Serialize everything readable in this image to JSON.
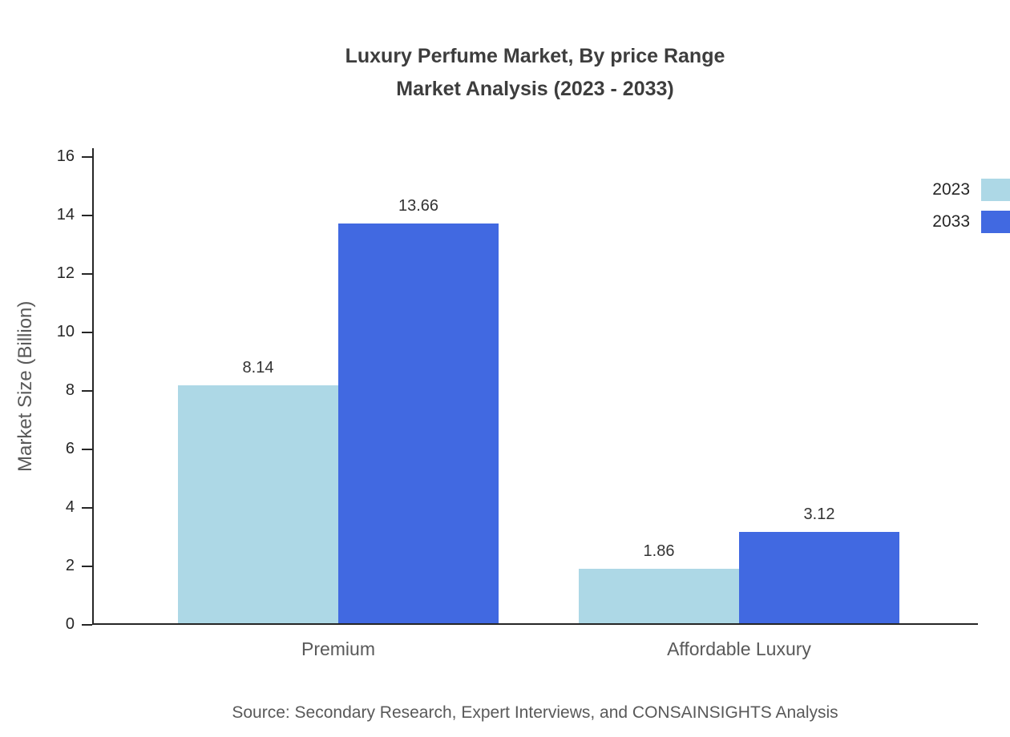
{
  "chart_data": {
    "type": "bar",
    "title": "Luxury Perfume Market, By price Range",
    "subtitle": "Market Analysis (2023 - 2033)",
    "ylabel": "Market Size (Billion)",
    "xlabel": "",
    "categories": [
      "Premium",
      "Affordable Luxury"
    ],
    "series": [
      {
        "name": "2023",
        "color": "#add8e6",
        "values": [
          8.14,
          1.86
        ]
      },
      {
        "name": "2033",
        "color": "#4169e1",
        "values": [
          13.66,
          3.12
        ]
      }
    ],
    "ylim": [
      0,
      16
    ],
    "yticks": [
      0,
      2,
      4,
      6,
      8,
      10,
      12,
      14,
      16
    ],
    "grid": false,
    "legend_position": "top-right",
    "source": "Source: Secondary Research, Expert Interviews, and CONSAINSIGHTS Analysis"
  }
}
